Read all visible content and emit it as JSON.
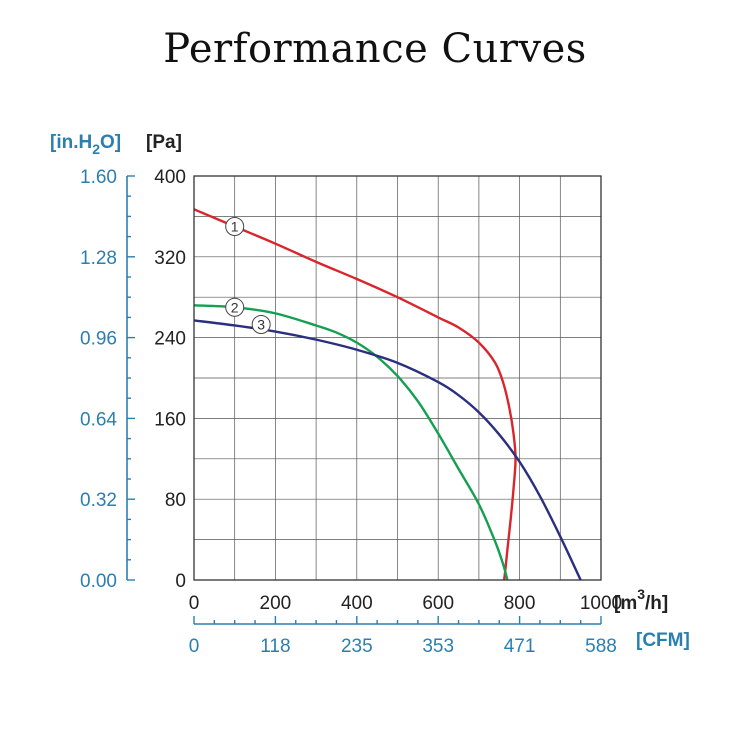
{
  "chart_data": {
    "type": "line",
    "title": "Performance Curves",
    "x_axis": {
      "unit_label": "[m",
      "unit_sup": "3",
      "unit_suffix": "/h]",
      "range": [
        0,
        1000
      ],
      "ticks": [
        "0",
        "200",
        "400",
        "600",
        "800",
        "1000"
      ]
    },
    "x2_axis": {
      "unit_label": "[CFM]",
      "range": [
        0,
        588
      ],
      "ticks": [
        "0",
        "118",
        "235",
        "353",
        "471",
        "588"
      ]
    },
    "y_axis": {
      "unit_label": "[Pa]",
      "range": [
        0,
        400
      ],
      "ticks": [
        "0",
        "80",
        "160",
        "240",
        "320",
        "400"
      ]
    },
    "y2_axis": {
      "unit_label_pre": "[in.H",
      "unit_sub": "2",
      "unit_label_post": "O]",
      "range": [
        0,
        1.6
      ],
      "ticks": [
        "0.00",
        "0.32",
        "0.64",
        "0.96",
        "1.28",
        "1.60"
      ]
    },
    "grid": true,
    "series": [
      {
        "name": "1",
        "color": "#d9262c",
        "x": [
          0,
          100,
          200,
          300,
          400,
          500,
          600,
          650,
          700,
          740,
          760,
          775,
          785,
          790,
          785,
          778,
          770,
          765,
          762
        ],
        "y": [
          367,
          350,
          333,
          315,
          298,
          280,
          260,
          250,
          235,
          215,
          195,
          170,
          145,
          120,
          90,
          60,
          30,
          10,
          0
        ]
      },
      {
        "name": "2",
        "color": "#14a050",
        "x": [
          0,
          100,
          200,
          300,
          350,
          400,
          450,
          500,
          550,
          600,
          650,
          700,
          740,
          760,
          770
        ],
        "y": [
          272,
          270,
          264,
          252,
          245,
          235,
          221,
          202,
          177,
          145,
          110,
          75,
          38,
          15,
          0
        ]
      },
      {
        "name": "3",
        "color": "#2a2f80",
        "x": [
          0,
          100,
          200,
          300,
          400,
          500,
          600,
          650,
          700,
          750,
          800,
          850,
          900,
          950
        ],
        "y": [
          257,
          252,
          246,
          238,
          228,
          215,
          196,
          183,
          166,
          144,
          117,
          83,
          43,
          0
        ]
      }
    ]
  }
}
